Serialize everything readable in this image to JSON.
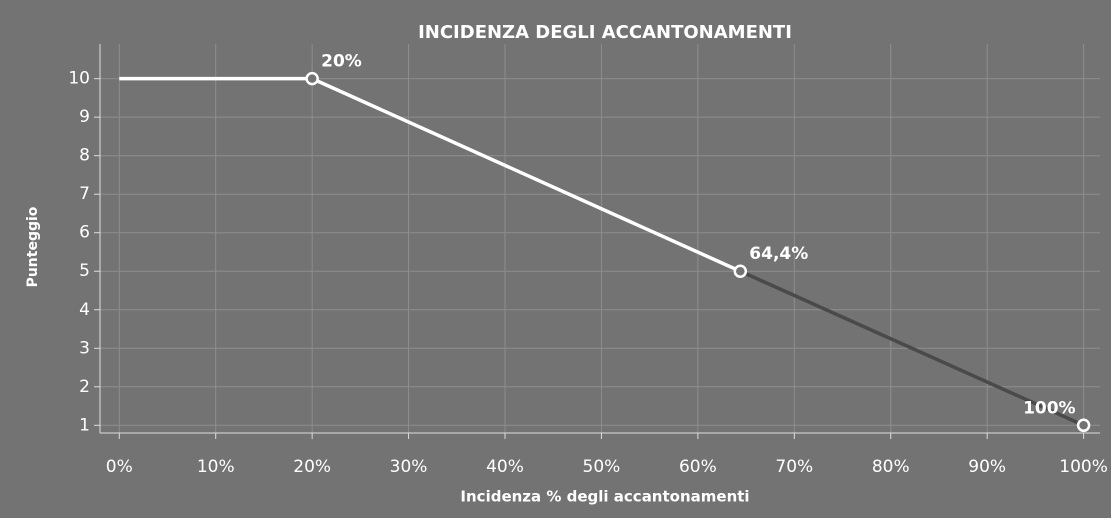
{
  "chart_data": {
    "type": "line",
    "title": "INCIDENZA DEGLI ACCANTONAMENTI",
    "xlabel": "Incidenza % degli accantonamenti",
    "ylabel": "Punteggio",
    "series": [
      {
        "color": "#ffffff",
        "x": [
          0,
          20,
          64.4
        ],
        "values": [
          10,
          10,
          5
        ]
      },
      {
        "color": "#4a4a4a",
        "x": [
          64.4,
          100
        ],
        "values": [
          5,
          1
        ]
      }
    ],
    "annotations": [
      {
        "x": 20,
        "y": 10,
        "label": "20%"
      },
      {
        "x": 64.4,
        "y": 5,
        "label": "64,4%"
      },
      {
        "x": 100,
        "y": 1,
        "label": "100%"
      }
    ],
    "xlim": [
      -2,
      101.7
    ],
    "ylim": [
      0.8,
      10.9
    ],
    "xticks": [
      {
        "value": 0,
        "label": "0%"
      },
      {
        "value": 10,
        "label": "10%"
      },
      {
        "value": 20,
        "label": "20%"
      },
      {
        "value": 30,
        "label": "30%"
      },
      {
        "value": 40,
        "label": "40%"
      },
      {
        "value": 50,
        "label": "50%"
      },
      {
        "value": 60,
        "label": "60%"
      },
      {
        "value": 70,
        "label": "70%"
      },
      {
        "value": 80,
        "label": "80%"
      },
      {
        "value": 90,
        "label": "90%"
      },
      {
        "value": 100,
        "label": "100%"
      }
    ],
    "yticks": [
      1,
      2,
      3,
      4,
      5,
      6,
      7,
      8,
      9,
      10
    ],
    "grid": true
  }
}
